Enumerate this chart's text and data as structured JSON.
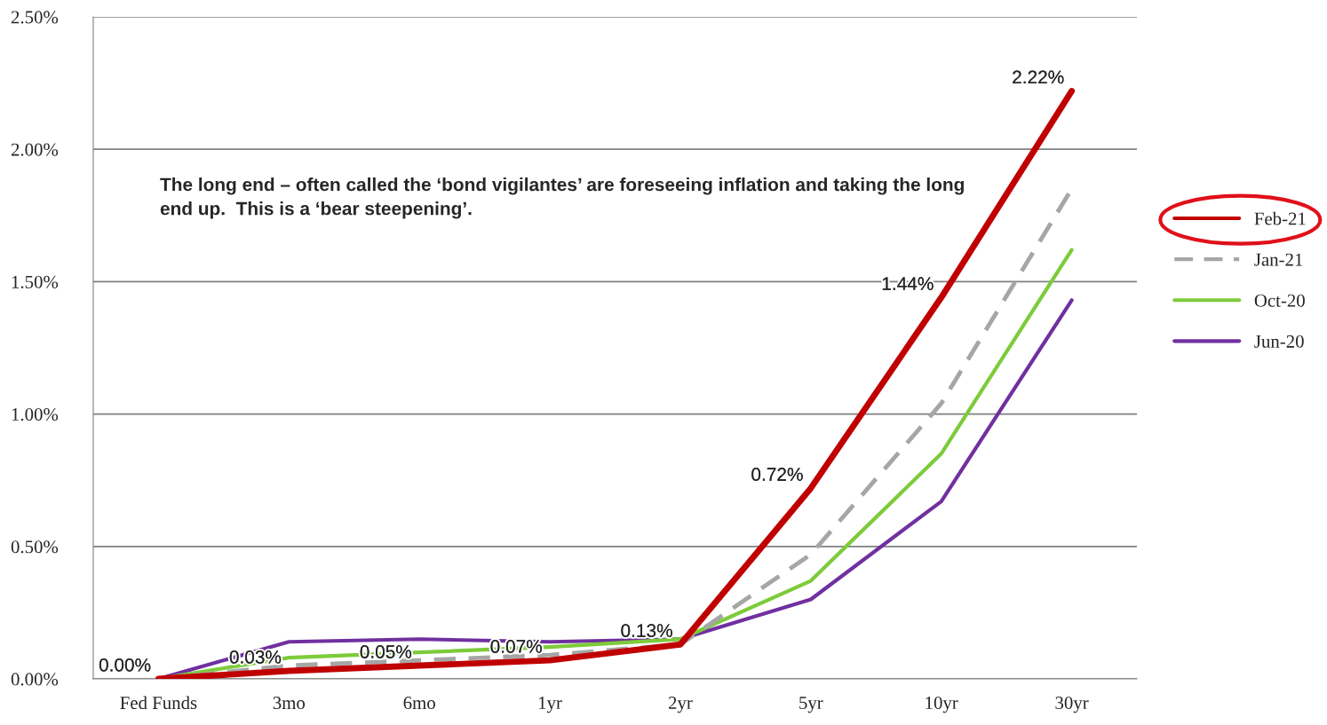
{
  "chart_data": {
    "type": "line",
    "categories": [
      "Fed Funds",
      "3mo",
      "6mo",
      "1yr",
      "2yr",
      "5yr",
      "10yr",
      "30yr"
    ],
    "series": [
      {
        "name": "Feb-21",
        "color": "#c00000",
        "values": [
          0.0,
          0.03,
          0.05,
          0.07,
          0.13,
          0.72,
          1.44,
          2.22
        ],
        "value_labels": [
          "0.00%",
          "0.03%",
          "0.05%",
          "0.07%",
          "0.13%",
          "0.72%",
          "1.44%",
          "2.22%"
        ]
      },
      {
        "name": "Jan-21",
        "color": "#a6a6a6",
        "line_style": "dashed",
        "values": [
          0.0,
          0.05,
          0.07,
          0.09,
          0.13,
          0.47,
          1.04,
          1.85
        ]
      },
      {
        "name": "Oct-20",
        "color": "#7dcb3a",
        "values": [
          0.0,
          0.08,
          0.1,
          0.12,
          0.15,
          0.37,
          0.85,
          1.62
        ]
      },
      {
        "name": "Jun-20",
        "color": "#7030a0",
        "values": [
          0.0,
          0.14,
          0.15,
          0.14,
          0.15,
          0.3,
          0.67,
          1.43
        ]
      }
    ],
    "ylim": [
      0,
      2.5
    ],
    "yticks": [
      {
        "value": 0,
        "label": "0.00%"
      },
      {
        "value": 0.5,
        "label": "0.50%"
      },
      {
        "value": 1.0,
        "label": "1.00%"
      },
      {
        "value": 1.5,
        "label": "1.50%"
      },
      {
        "value": 2.0,
        "label": "2.00%"
      },
      {
        "value": 2.5,
        "label": "2.50%"
      }
    ],
    "grid": "y",
    "legend": "right",
    "marker": "none",
    "annotations": [
      "The long end – often called the ‘bond vigilantes’ are foreseeing inflation and taking the long end up.  This is a ‘bear steepening’."
    ]
  }
}
